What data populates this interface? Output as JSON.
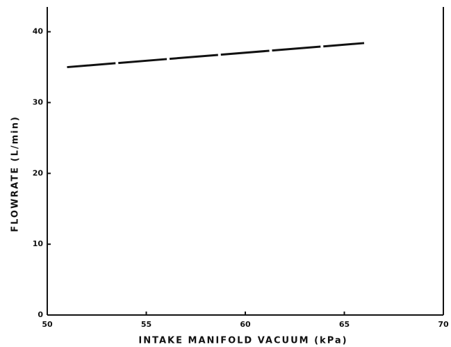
{
  "chart_data": {
    "type": "line",
    "x_label": "INTAKE MANIFOLD VACUUM (kPa)",
    "y_label": "FLOWRATE (L/min)",
    "x": [
      51,
      66
    ],
    "series": [
      {
        "name": null,
        "color": "#111111",
        "values": [
          35,
          38.4
        ]
      }
    ],
    "xlim": [
      50,
      70
    ],
    "xticks": [
      50,
      55,
      60,
      65,
      70
    ],
    "ylim": [
      0,
      43.5
    ],
    "yticks": [
      0,
      10,
      20,
      30,
      40
    ],
    "grid": false
  }
}
